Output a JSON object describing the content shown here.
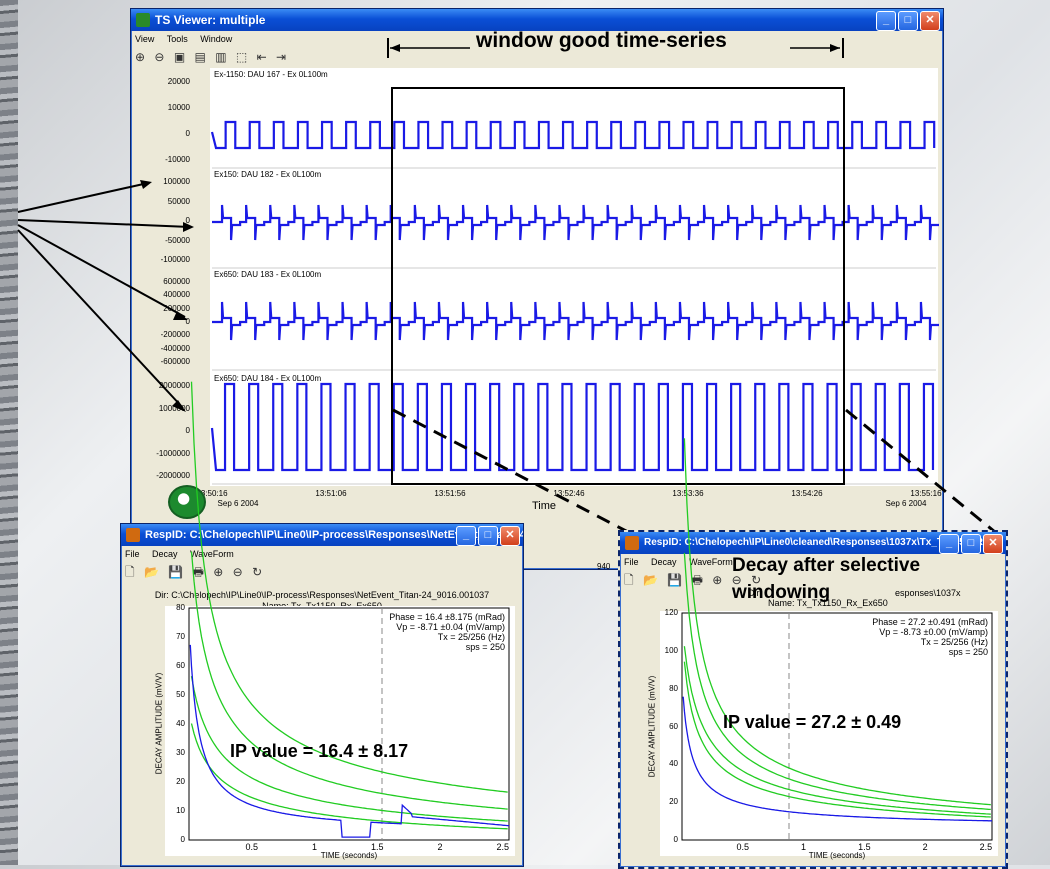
{
  "ts_viewer": {
    "title": "TS Viewer: multiple",
    "menu": [
      "View",
      "Tools",
      "Window"
    ],
    "toolbar_icons": [
      "zoom-in-icon",
      "zoom-out-icon",
      "fit-icon",
      "fit-x-icon",
      "fit-y-icon",
      "select-icon",
      "pan-left-icon",
      "pan-right-icon"
    ],
    "annotation": "window good time-series",
    "channels": [
      {
        "label": "Ex-1150: DAU 167 - Ex 0L100m",
        "ticks": [
          "20000",
          "10000",
          "0",
          "-10000"
        ]
      },
      {
        "label": "Ex150: DAU 182 - Ex 0L100m",
        "ticks": [
          "100000",
          "50000",
          "0",
          "-50000",
          "-100000"
        ]
      },
      {
        "label": "Ex650: DAU 183 - Ex 0L100m",
        "ticks": [
          "600000",
          "400000",
          "200000",
          "0",
          "-200000",
          "-400000",
          "-600000"
        ]
      },
      {
        "label": "Ex650: DAU 184 - Ex 0L100m",
        "ticks": [
          "2000000",
          "1000000",
          "0",
          "-1000000",
          "-2000000"
        ]
      }
    ],
    "time_ticks": [
      "13:50:16",
      "13:51:06",
      "13:51:56",
      "13:52:46",
      "13:53:36",
      "13:54:26",
      "13:55:16"
    ],
    "date_left": "Sep 6 2004",
    "date_right": "Sep 6 2004",
    "xlabel": "Time",
    "status_value": "940"
  },
  "resp_left": {
    "title": "RespID: C:\\Chelopech\\IP\\Line0\\IP-process\\Responses\\NetEvent_Titan-24...",
    "menu": [
      "File",
      "Decay",
      "WaveForm"
    ],
    "dir": "Dir: C:\\Chelopech\\IP\\Line0\\IP-process\\Responses\\NetEvent_Titan-24_9016.001037",
    "name": "Name: Tx_Tx1150_Rx_Ex650",
    "stats": [
      "Phase = 16.4 ±8.175 (mRad)",
      "Vp = -8.71 ±0.04 (mV/amp)",
      "Tx = 25/256 (Hz)",
      "sps = 250"
    ],
    "ip_text": "IP value  = 16.4 ± 8.17",
    "ylabel": "DECAY AMPLITUDE (mV/V)",
    "xlabel": "TIME (seconds)",
    "yticks": [
      "80",
      "70",
      "60",
      "50",
      "40",
      "30",
      "20",
      "10",
      "0"
    ],
    "xticks": [
      "0.5",
      "1",
      "1.5",
      "2",
      "2.5"
    ]
  },
  "resp_right": {
    "title": "RespID: C:\\Chelopech\\IP\\Line0\\cleaned\\Responses\\1037x\\Tx_Tx1150_Rx...",
    "menu": [
      "File",
      "Decay",
      "WaveForm"
    ],
    "dir": "Dir",
    "dir_tail": "esponses\\1037x",
    "name": "Name: Tx_Tx1150_Rx_Ex650",
    "overlay": "Decay after selective windowing",
    "stats": [
      "Phase = 27.2 ±0.491 (mRad)",
      "Vp = -8.73 ±0.00 (mV/amp)",
      "Tx = 25/256 (Hz)",
      "sps = 250"
    ],
    "ip_text": "IP value  = 27.2 ± 0.49",
    "ylabel": "DECAY AMPLITUDE (mV/V)",
    "xlabel": "TIME (seconds)",
    "yticks": [
      "120",
      "100",
      "80",
      "60",
      "40",
      "20",
      "0"
    ],
    "xticks": [
      "0.5",
      "1",
      "1.5",
      "2",
      "2.5"
    ]
  },
  "colors": {
    "trace": "#1a1ae6",
    "fit": "#22cc22",
    "title_blue": "#0a4fd6"
  }
}
